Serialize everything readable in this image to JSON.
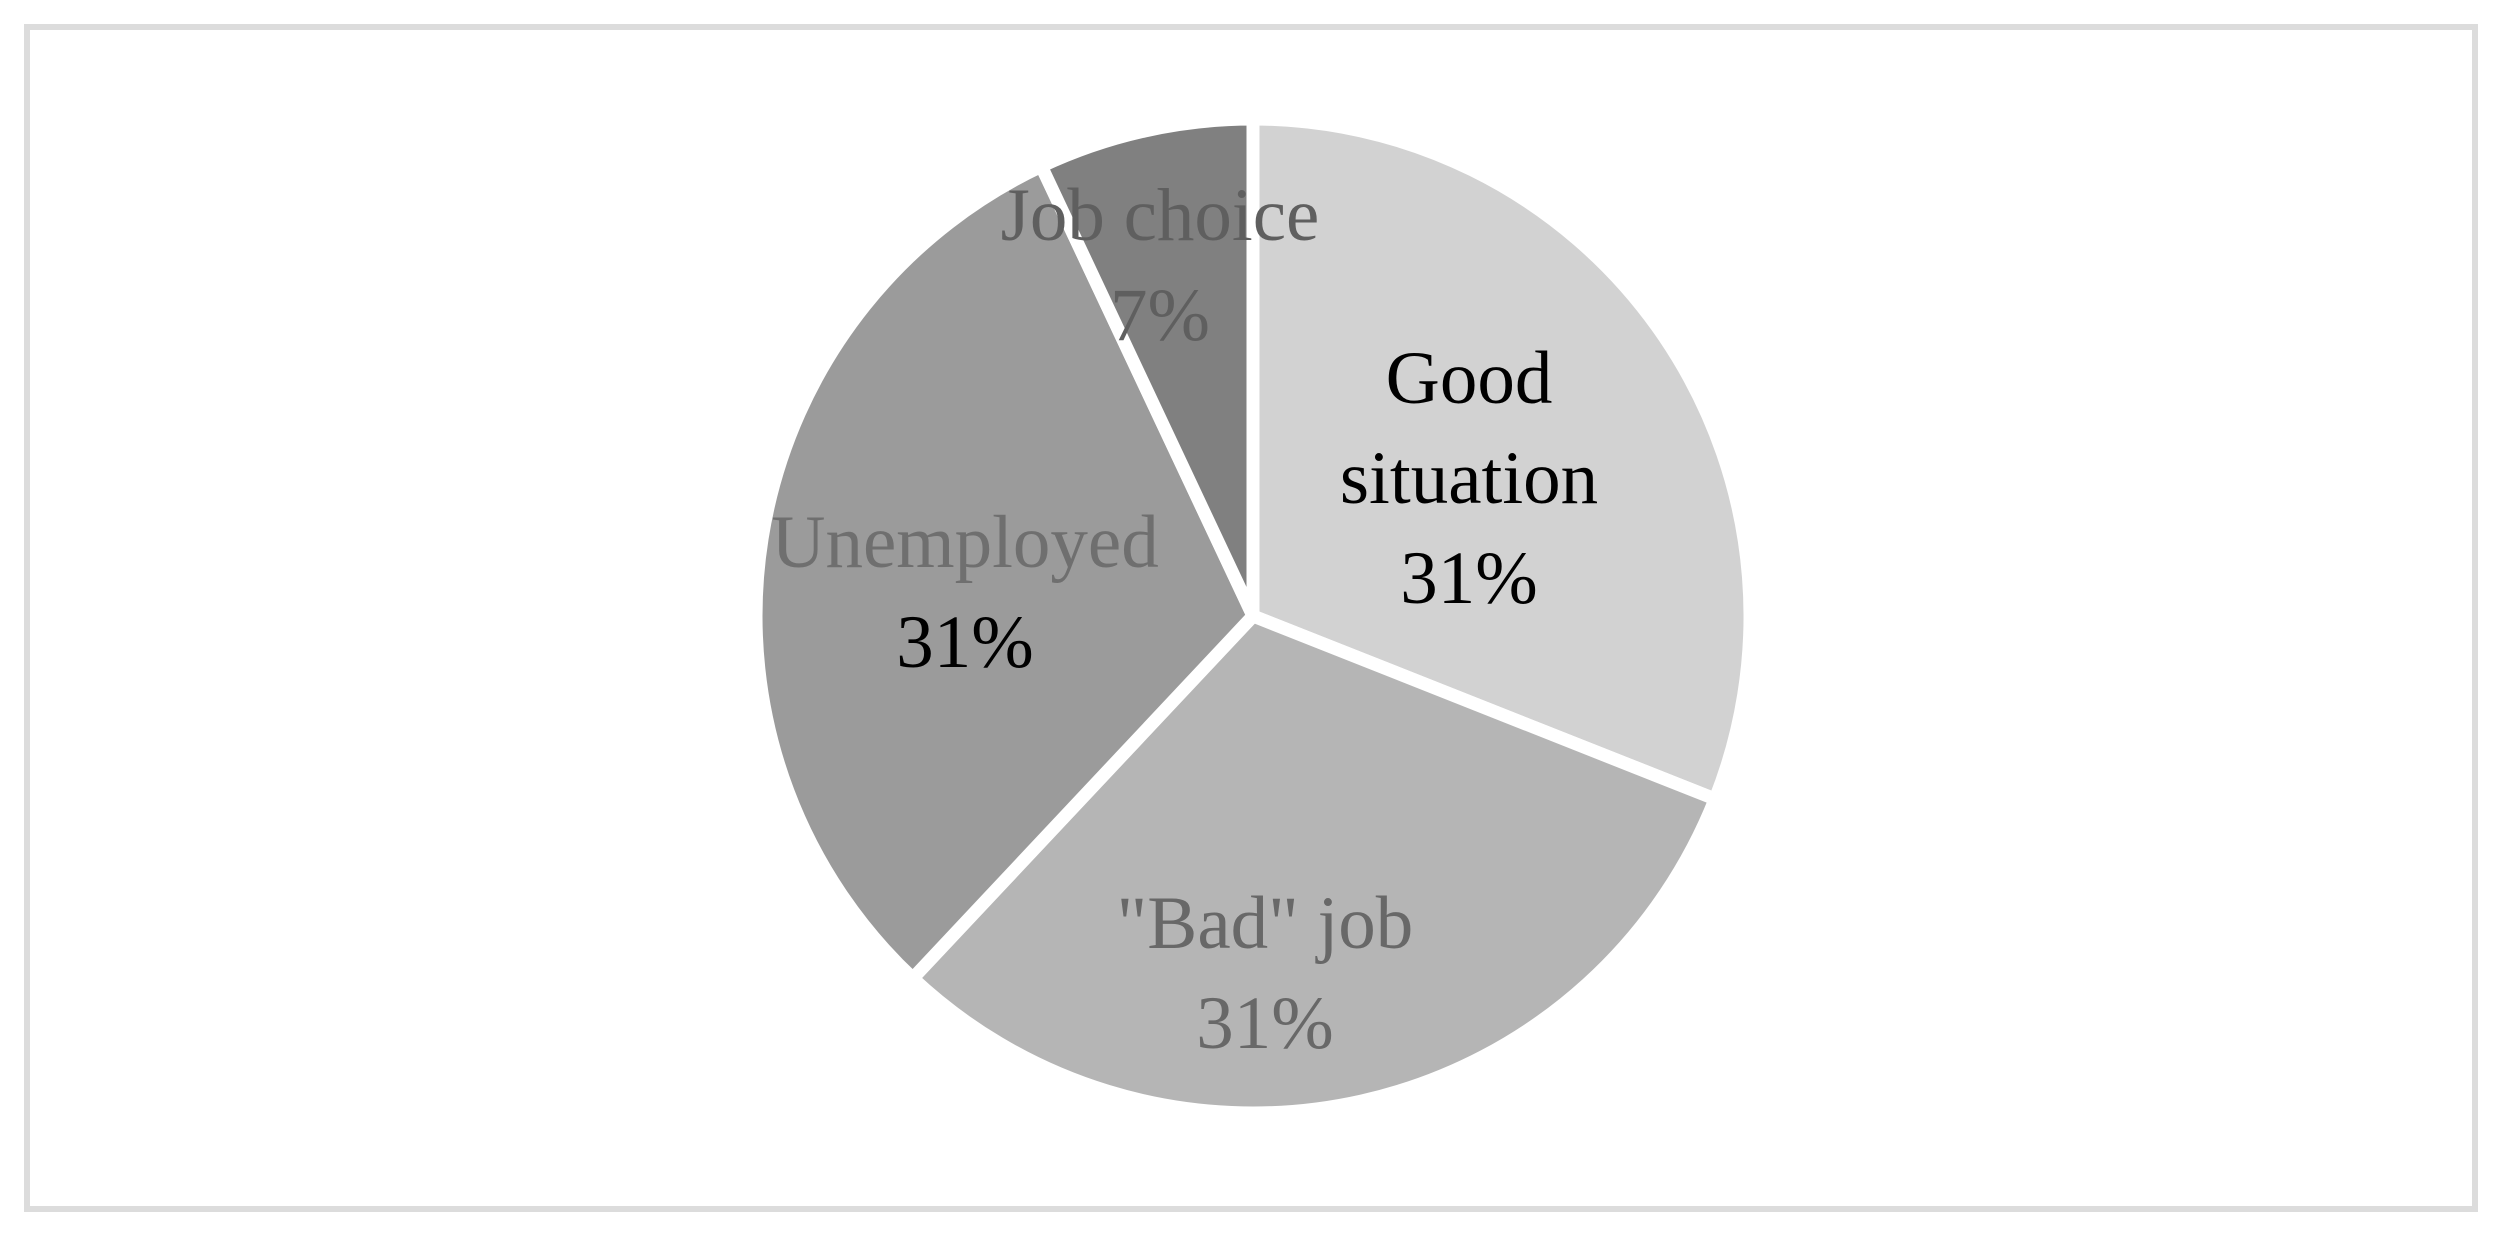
{
  "figure": {
    "background_color": "#ffffff",
    "frame_color": "#dcdcdc",
    "divider_color": "#ffffff"
  },
  "chart_data": {
    "type": "pie",
    "title": "",
    "legend": "none",
    "labels_position": "inside",
    "start_angle_deg": 0,
    "direction": "clockwise",
    "categories": [
      "Good situation",
      "\"Bad\" job",
      "Unemployed",
      "Job choice"
    ],
    "values": [
      31,
      31,
      31,
      7
    ],
    "slices": [
      {
        "id": "good-situation",
        "label": "Good situation",
        "value": 31,
        "value_label": "31%",
        "color": "#d2d2d2",
        "label_color": "#000000",
        "value_color": "#000000"
      },
      {
        "id": "bad-job",
        "label": "\"Bad\" job",
        "value": 31,
        "value_label": "31%",
        "color": "#b5b5b5",
        "label_color": "#686868",
        "value_color": "#686868"
      },
      {
        "id": "unemployed",
        "label": "Unemployed",
        "value": 31,
        "value_label": "31%",
        "color": "#9b9b9b",
        "label_color": "#6f6f6f",
        "value_color": "#000000"
      },
      {
        "id": "job-choice",
        "label": "Job choice",
        "value": 7,
        "value_label": "7%",
        "color": "#808080",
        "label_color": "#5f5f5f",
        "value_color": "#5f5f5f"
      }
    ]
  }
}
